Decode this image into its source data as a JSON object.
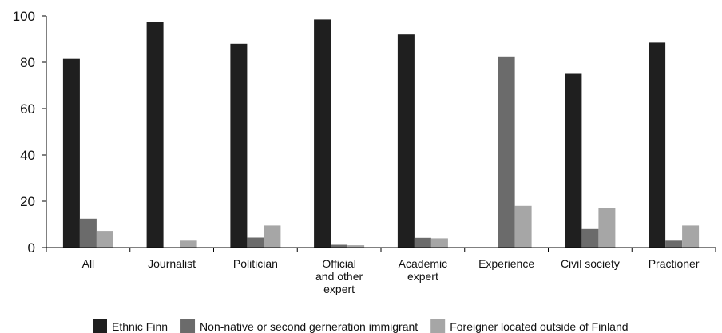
{
  "chart_data": {
    "type": "bar",
    "title": "",
    "xlabel": "",
    "ylabel": "",
    "ylim": [
      0,
      100
    ],
    "yticks": [
      "0",
      "20",
      "40",
      "60",
      "80",
      "100"
    ],
    "grid": false,
    "legend_position": "bottom",
    "categories": [
      [
        "All"
      ],
      [
        "Journalist"
      ],
      [
        "Politician"
      ],
      [
        "Official",
        "and other",
        "expert"
      ],
      [
        "Academic",
        "expert"
      ],
      [
        "Experience"
      ],
      [
        "Civil society"
      ],
      [
        "Practioner"
      ]
    ],
    "series": [
      {
        "name": "Ethnic Finn",
        "color": "#1f1f1f",
        "values": [
          81.5,
          97.5,
          88,
          98.5,
          92,
          0,
          75,
          88.5
        ]
      },
      {
        "name": "Non-native or second gerneration immigrant",
        "color": "#6b6b6b",
        "values": [
          12.5,
          0,
          4.3,
          1.2,
          4.2,
          82.5,
          8,
          3
        ]
      },
      {
        "name": "Foreigner located outside of Finland",
        "color": "#a6a6a6",
        "values": [
          7.2,
          3,
          9.5,
          1,
          4,
          18,
          17,
          9.5
        ]
      }
    ]
  }
}
